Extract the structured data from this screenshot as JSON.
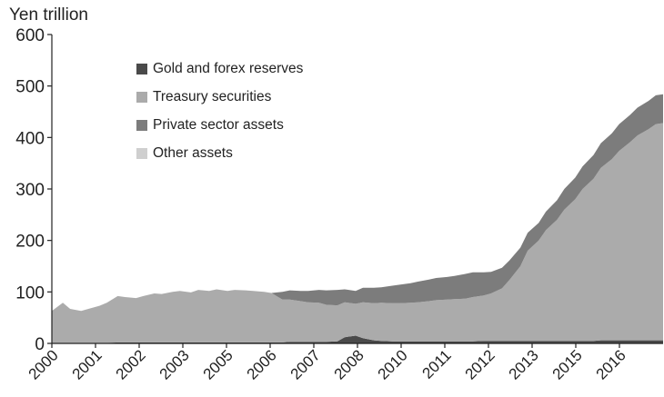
{
  "chart_data": {
    "type": "area",
    "stacked": true,
    "ylabel": "Yen trillion",
    "ylim": [
      0,
      600
    ],
    "y_ticks": [
      0,
      100,
      200,
      300,
      400,
      500,
      600
    ],
    "xlim": [
      2000.0,
      2016.7
    ],
    "x_tick_labels": [
      "2000",
      "2001",
      "2002",
      "2003",
      "2005",
      "2006",
      "2007",
      "2008",
      "2010",
      "2011",
      "2012",
      "2013",
      "2015",
      "2016"
    ],
    "grid": false,
    "legend_position": "top-left",
    "x": [
      2000.0,
      2000.3,
      2000.5,
      2000.8,
      2001.0,
      2001.3,
      2001.5,
      2001.8,
      2002.0,
      2002.3,
      2002.5,
      2002.8,
      2003.0,
      2003.3,
      2003.5,
      2003.8,
      2004.0,
      2004.3,
      2004.5,
      2004.8,
      2005.0,
      2005.3,
      2005.5,
      2005.8,
      2006.0,
      2006.3,
      2006.5,
      2006.8,
      2007.0,
      2007.3,
      2007.5,
      2007.8,
      2008.0,
      2008.3,
      2008.5,
      2008.8,
      2009.0,
      2009.3,
      2009.5,
      2009.8,
      2010.0,
      2010.3,
      2010.5,
      2010.8,
      2011.0,
      2011.3,
      2011.5,
      2011.8,
      2012.0,
      2012.3,
      2012.5,
      2012.8,
      2013.0,
      2013.3,
      2013.5,
      2013.8,
      2014.0,
      2014.3,
      2014.5,
      2014.8,
      2015.0,
      2015.3,
      2015.5,
      2015.8,
      2016.0,
      2016.3,
      2016.5,
      2016.7
    ],
    "series": [
      {
        "name": "Gold and forex reserves",
        "color": "#4a4a4a",
        "values": [
          1,
          1,
          1,
          1,
          1,
          1,
          1,
          2,
          2,
          2,
          2,
          2,
          2,
          2,
          2,
          2,
          2,
          2,
          2,
          2,
          2,
          2,
          2,
          2,
          2,
          2,
          3,
          3,
          3,
          3,
          3,
          4,
          12,
          15,
          10,
          6,
          5,
          4,
          4,
          4,
          4,
          4,
          4,
          4,
          4,
          4,
          4,
          5,
          5,
          5,
          5,
          5,
          5,
          5,
          5,
          5,
          5,
          5,
          5,
          5,
          6,
          6,
          6,
          6,
          6,
          6,
          6,
          6
        ]
      },
      {
        "name": "Treasury securities",
        "color": "#ababab",
        "values": [
          62,
          78,
          66,
          62,
          66,
          72,
          78,
          90,
          88,
          86,
          90,
          95,
          94,
          98,
          100,
          97,
          102,
          100,
          103,
          100,
          102,
          101,
          100,
          98,
          96,
          83,
          82,
          79,
          77,
          76,
          72,
          70,
          68,
          62,
          70,
          72,
          74,
          74,
          74,
          75,
          76,
          78,
          80,
          81,
          82,
          83,
          86,
          88,
          92,
          102,
          118,
          145,
          175,
          195,
          215,
          235,
          255,
          275,
          295,
          315,
          335,
          352,
          368,
          385,
          398,
          410,
          420,
          422
        ]
      },
      {
        "name": "Private sector assets",
        "color": "#7c7c7c",
        "values": [
          0,
          0,
          0,
          0,
          0,
          0,
          0,
          0,
          0,
          0,
          0,
          0,
          0,
          0,
          0,
          0,
          0,
          0,
          0,
          0,
          0,
          0,
          0,
          0,
          0,
          15,
          18,
          20,
          22,
          25,
          28,
          30,
          25,
          25,
          28,
          30,
          30,
          34,
          36,
          38,
          40,
          42,
          43,
          44,
          45,
          48,
          48,
          45,
          42,
          40,
          38,
          36,
          35,
          34,
          36,
          38,
          40,
          42,
          44,
          46,
          48,
          50,
          52,
          53,
          54,
          55,
          56,
          56
        ]
      },
      {
        "name": "Other assets",
        "color": "#cfcfcf",
        "values": [
          0,
          0,
          0,
          0,
          0,
          0,
          0,
          0,
          0,
          0,
          0,
          0,
          0,
          0,
          0,
          0,
          0,
          0,
          0,
          0,
          0,
          0,
          0,
          0,
          0,
          0,
          0,
          0,
          0,
          0,
          0,
          0,
          0,
          0,
          0,
          0,
          0,
          0,
          0,
          0,
          0,
          0,
          0,
          0,
          0,
          0,
          0,
          0,
          0,
          0,
          0,
          0,
          0,
          0,
          0,
          0,
          0,
          0,
          0,
          0,
          0,
          0,
          0,
          0,
          0,
          0,
          0,
          0
        ]
      }
    ]
  }
}
